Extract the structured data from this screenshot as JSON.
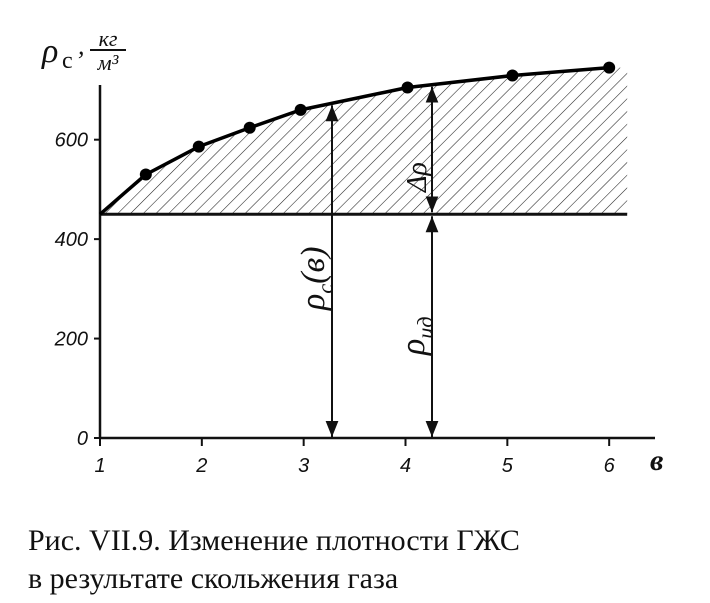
{
  "chart_data": {
    "type": "line",
    "y_label": {
      "symbol": "ρ",
      "subscript": "с",
      "unit_numerator": "кг",
      "unit_denominator": "м³"
    },
    "x_label": "в",
    "series": [
      {
        "x": [
          1.45,
          1.97,
          2.47,
          2.97,
          4.02,
          5.05,
          6.0
        ],
        "values": [
          530,
          586,
          624,
          660,
          705,
          729,
          745
        ],
        "color": "#000000"
      }
    ],
    "ideal_density": 450,
    "xlim": [
      1,
      6.45
    ],
    "ylim": [
      0,
      710
    ],
    "xticks": [
      1,
      2,
      3,
      4,
      5,
      6
    ],
    "yticks": [
      0,
      200,
      400,
      600
    ],
    "hatch": true,
    "annotations": [
      {
        "symbol": "ρ",
        "subscript": "с",
        "suffix": "(в)"
      },
      {
        "symbol": "ρ",
        "subscript": "ид"
      },
      {
        "symbol": "Δρ"
      }
    ],
    "caption": [
      "Рис. VII.9. Изменение плотности ГЖС",
      "в результате скольжения газа"
    ]
  }
}
